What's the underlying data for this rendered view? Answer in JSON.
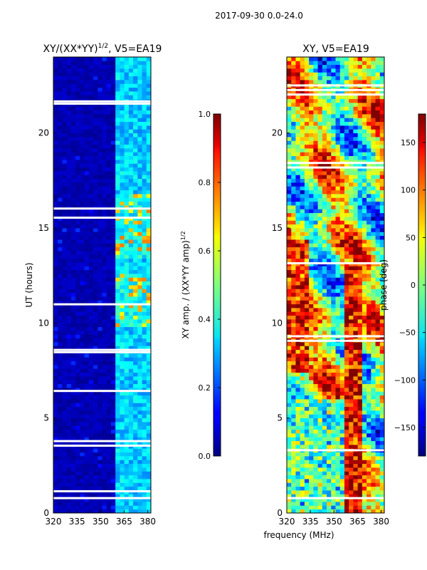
{
  "figure": {
    "suptitle": "2017-09-30 0.0-24.0",
    "xlabel_shared": "frequency (MHz)"
  },
  "chart_data": [
    {
      "type": "heatmap",
      "title": "XY/(XX*YY)^1/2, V5=EA19",
      "title_main": "XY/(XX*YY)",
      "title_exp": "1/2",
      "title_tail": ", V5=EA19",
      "xlabel": "",
      "ylabel": "UT (hours)",
      "xlim": [
        320,
        382
      ],
      "ylim": [
        0,
        24
      ],
      "xticks": [
        320,
        335,
        350,
        365,
        380
      ],
      "yticks": [
        0,
        5,
        10,
        15,
        20
      ],
      "colorbar": {
        "label": "XY amp. / (XX*YY amp)^1/2",
        "label_main": "XY amp. / (XX*YY amp)",
        "label_exp": "1/2",
        "range": [
          0.0,
          1.0
        ],
        "ticks": [
          "0.0",
          "0.2",
          "0.4",
          "0.6",
          "0.8",
          "1.0"
        ],
        "tick_values": [
          0.0,
          0.2,
          0.4,
          0.6,
          0.8,
          1.0
        ]
      }
    },
    {
      "type": "heatmap",
      "title": "XY, V5=EA19",
      "xlabel": "",
      "ylabel": "",
      "xlim": [
        320,
        382
      ],
      "ylim": [
        0,
        24
      ],
      "xticks": [
        320,
        335,
        350,
        365,
        380
      ],
      "yticks": [
        0,
        5,
        10,
        15,
        20
      ],
      "colorbar": {
        "label": "phase (deg)",
        "range": [
          -180,
          180
        ],
        "ticks": [
          "−150",
          "−100",
          "−50",
          "0",
          "50",
          "100",
          "150"
        ],
        "tick_values": [
          -150,
          -100,
          -50,
          0,
          50,
          100,
          150
        ]
      }
    }
  ],
  "colors": {
    "jet_low": "#00007f",
    "jet_mid": "#7fff7f",
    "jet_high": "#7f0000"
  }
}
